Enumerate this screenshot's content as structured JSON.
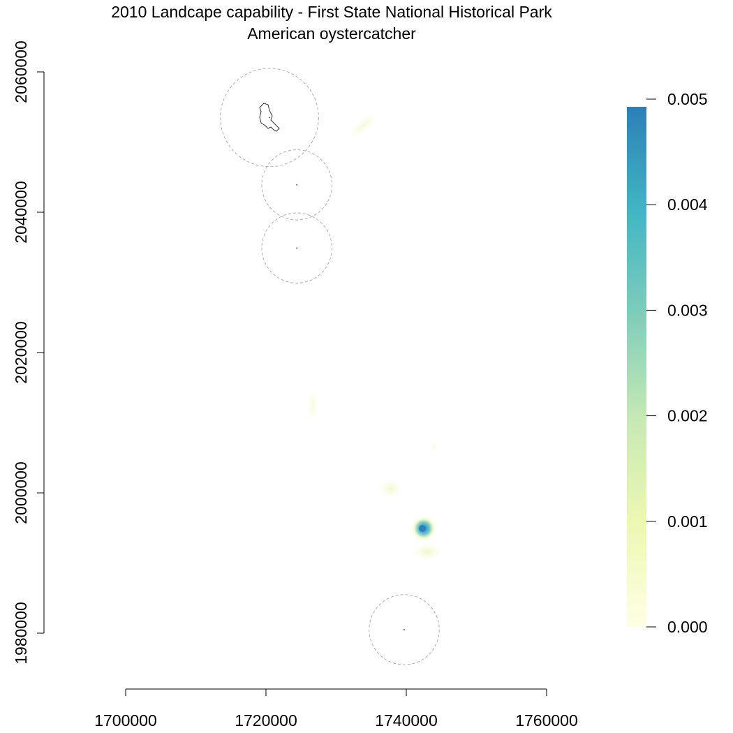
{
  "title": "2010 Landcape capability - First State National Historical Park",
  "subtitle": "American oystercatcher",
  "map": {
    "x_ticks": [
      {
        "value": 1700000,
        "label": "1700000"
      },
      {
        "value": 1720000,
        "label": "1720000"
      },
      {
        "value": 1740000,
        "label": "1740000"
      },
      {
        "value": 1760000,
        "label": "1760000"
      }
    ],
    "y_ticks": [
      {
        "value": 1980000,
        "label": "1980000"
      },
      {
        "value": 2000000,
        "label": "2000000"
      },
      {
        "value": 2020000,
        "label": "2020000"
      },
      {
        "value": 2040000,
        "label": "2040000"
      },
      {
        "value": 2060000,
        "label": "2060000"
      }
    ],
    "xlim": [
      1700000,
      1760000
    ],
    "ylim": [
      1980000,
      2060000
    ],
    "buffer_circles": [
      {
        "name": "buffer-north",
        "cx": 1720500,
        "cy": 2053500,
        "r": 7000
      },
      {
        "name": "buffer-mid-1",
        "cx": 1724400,
        "cy": 2043900,
        "r": 5000
      },
      {
        "name": "buffer-mid-2",
        "cx": 1724400,
        "cy": 2034900,
        "r": 5000
      },
      {
        "name": "buffer-south",
        "cx": 1739700,
        "cy": 1980500,
        "r": 5000
      }
    ],
    "legend": {
      "ticks": [
        {
          "value": 0.0,
          "label": "0.000"
        },
        {
          "value": 0.001,
          "label": "0.001"
        },
        {
          "value": 0.002,
          "label": "0.002"
        },
        {
          "value": 0.003,
          "label": "0.003"
        },
        {
          "value": 0.004,
          "label": "0.004"
        },
        {
          "value": 0.005,
          "label": "0.005"
        }
      ],
      "range": [
        0,
        0.005
      ],
      "colors": [
        "#ffffe5",
        "#edf8b1",
        "#c7e9b4",
        "#7fcdbb",
        "#41b6c4",
        "#2c7fb8"
      ]
    }
  }
}
